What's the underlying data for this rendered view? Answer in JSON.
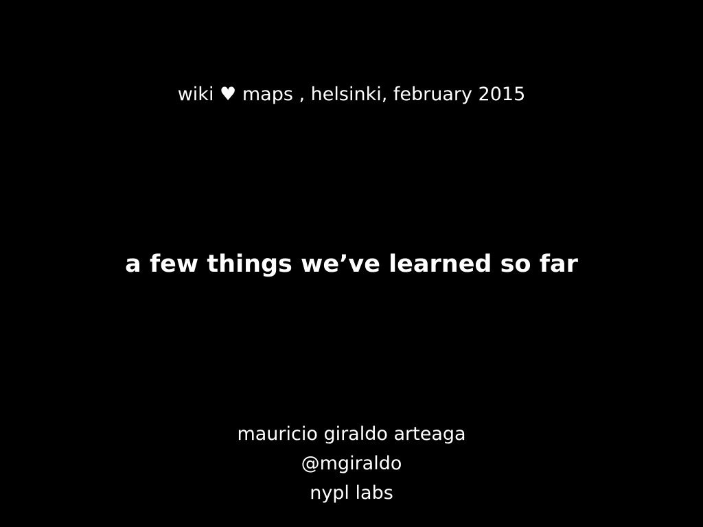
{
  "slide": {
    "header": {
      "prefix": "wiki",
      "heart": "♥",
      "suffix": "maps , helsinki, february 2015"
    },
    "title": "a few things we’ve learned so far",
    "author": {
      "name": "mauricio giraldo arteaga",
      "handle": "@mgiraldo",
      "organization": "nypl labs"
    }
  },
  "colors": {
    "background": "#000000",
    "text": "#ffffff"
  }
}
